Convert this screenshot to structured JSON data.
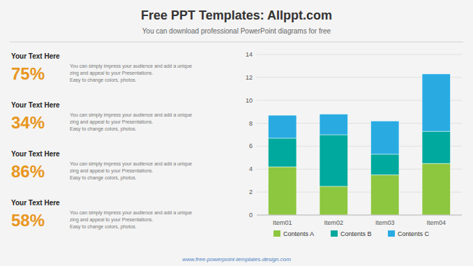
{
  "chart_data": {
    "type": "bar",
    "stacked": true,
    "title": "Free PPT Templates: Allppt.com",
    "subtitle": "You can download professional PowerPoint diagrams for free",
    "annotations": [
      {
        "heading": "Your Text Here",
        "value": 75,
        "label": "75%",
        "text": "You can simply impress your audience and add a unique\nzing and appeal to your Presentations.\nEasy to change colors, photos."
      },
      {
        "heading": "Your Text Here",
        "value": 34,
        "label": "34%",
        "text": "You can simply impress your audience and add a unique\nzing and appeal to your Presentations.\nEasy to change colors, photos."
      },
      {
        "heading": "Your Text Here",
        "value": 86,
        "label": "86%",
        "text": "You can simply impress your audience and add a unique\nzing and appeal to your Presentations.\nEasy to change colors, photos."
      },
      {
        "heading": "Your Text Here",
        "value": 58,
        "label": "58%",
        "text": "You can simply impress your audience and add a unique\nzing and appeal to your Presentations.\nEasy to change colors, photos."
      },
      {
        "text": "www.free-powerpoint-templates-design.com"
      }
    ],
    "categories": [
      "Item01",
      "Item02",
      "Item03",
      "Item04"
    ],
    "series": [
      {
        "name": "Contents A",
        "color": "#8dc63f",
        "values": [
          4.2,
          2.5,
          3.5,
          4.5
        ]
      },
      {
        "name": "Contents B",
        "color": "#00a99d",
        "values": [
          2.5,
          4.5,
          1.8,
          2.8
        ]
      },
      {
        "name": "Contents C",
        "color": "#29abe2",
        "values": [
          2.0,
          1.8,
          2.9,
          5.0
        ]
      }
    ],
    "ylim": [
      0,
      14
    ],
    "yticks": [
      0,
      2,
      4,
      6,
      8,
      10,
      12,
      14
    ],
    "grid": true,
    "legend": "bottom"
  }
}
